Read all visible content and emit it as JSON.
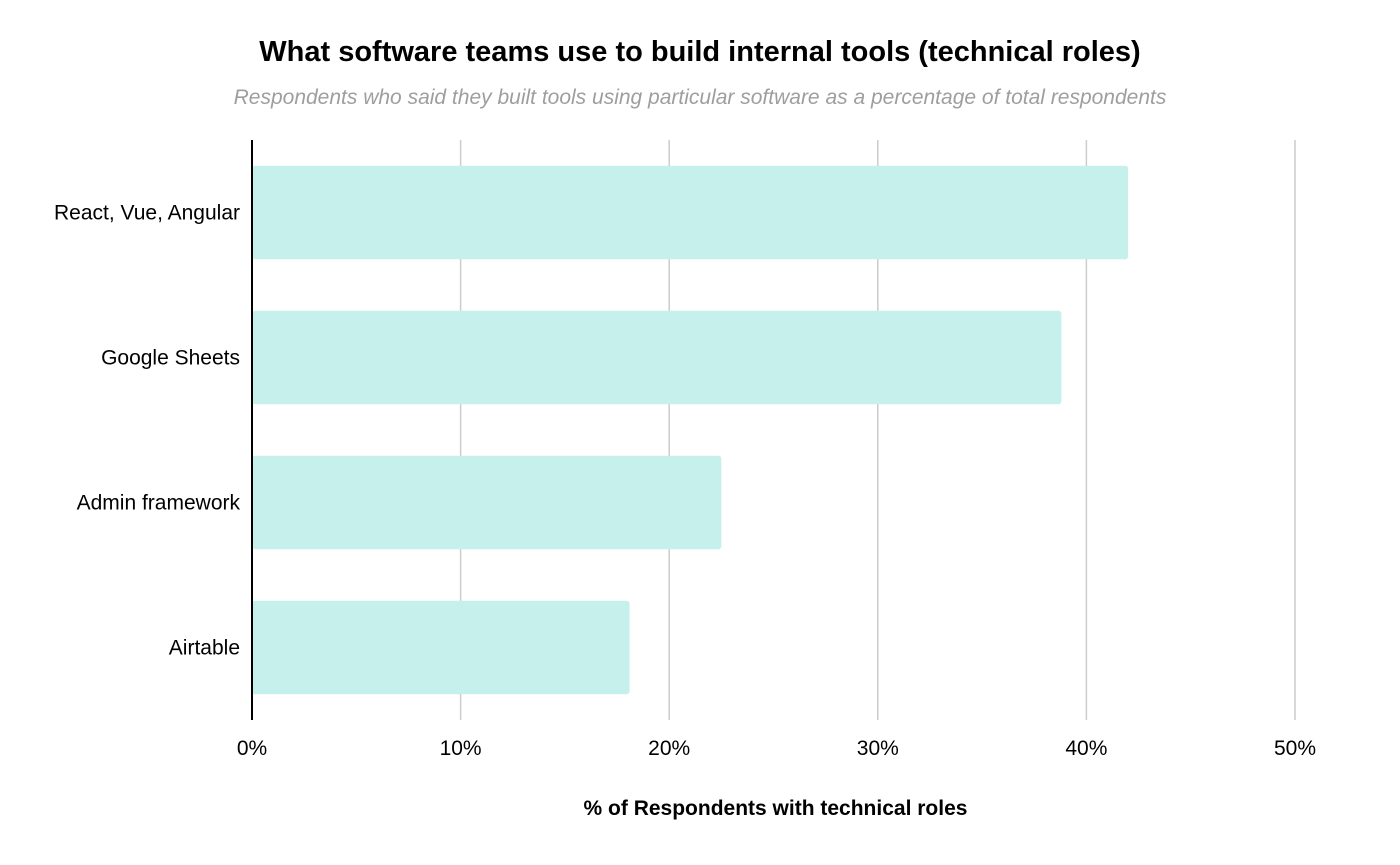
{
  "chart_data": {
    "type": "bar",
    "orientation": "horizontal",
    "title": "What software teams use to build internal tools (technical roles)",
    "subtitle": "Respondents who said they built tools using particular software as a percentage of total respondents",
    "categories": [
      "React, Vue, Angular",
      "Google Sheets",
      "Admin framework",
      "Airtable"
    ],
    "values": [
      42,
      38.8,
      22.5,
      18.1
    ],
    "xlabel": "% of Respondents with technical roles",
    "ylabel": "",
    "xlim": [
      0,
      50
    ],
    "xticks": [
      0,
      10,
      20,
      30,
      40,
      50
    ],
    "tick_format": "percent",
    "grid": true,
    "legend": "none",
    "colors": {
      "bar": "#c6f0ec",
      "gridline": "#cccccc",
      "axis": "#000000"
    }
  }
}
